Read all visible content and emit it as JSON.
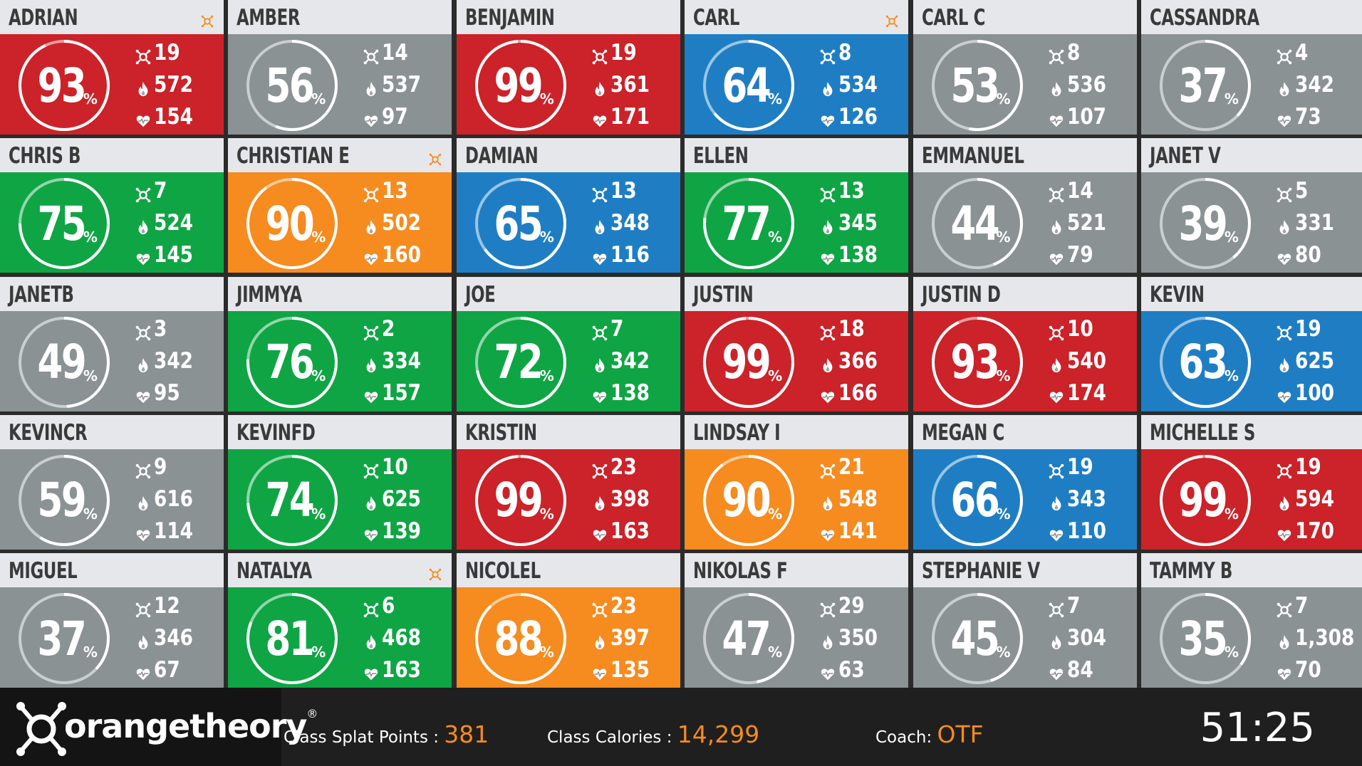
{
  "colors": {
    "red": "#cc2229",
    "gray": "#8b9293",
    "green": "#0fa544",
    "blue": "#1f7ec3",
    "orange": "#f68b1f",
    "header_bg": "#e6e7ea",
    "footer_bg": "#1f1f1f",
    "accent": "#f68b1f"
  },
  "icons": {
    "splat": "splat-icon",
    "calories": "flame-icon",
    "heart_rate": "heart-rate-icon",
    "flag": "splat-flag-icon"
  },
  "participants": [
    {
      "name": "ADRIAN",
      "pct": "93",
      "pct_symbol": "%",
      "splats": "19",
      "calories": "572",
      "heart_rate": "154",
      "color": "red",
      "flag": true
    },
    {
      "name": "AMBER",
      "pct": "56",
      "pct_symbol": "%",
      "splats": "14",
      "calories": "537",
      "heart_rate": "97",
      "color": "gray",
      "flag": false
    },
    {
      "name": "BENJAMIN",
      "pct": "99",
      "pct_symbol": "%",
      "splats": "19",
      "calories": "361",
      "heart_rate": "171",
      "color": "red",
      "flag": false
    },
    {
      "name": "CARL",
      "pct": "64",
      "pct_symbol": "%",
      "splats": "8",
      "calories": "534",
      "heart_rate": "126",
      "color": "blue",
      "flag": true
    },
    {
      "name": "CARL C",
      "pct": "53",
      "pct_symbol": "%",
      "splats": "8",
      "calories": "536",
      "heart_rate": "107",
      "color": "gray",
      "flag": false
    },
    {
      "name": "CASSANDRA",
      "pct": "37",
      "pct_symbol": "%",
      "splats": "4",
      "calories": "342",
      "heart_rate": "73",
      "color": "gray",
      "flag": false
    },
    {
      "name": "CHRIS B",
      "pct": "75",
      "pct_symbol": "%",
      "splats": "7",
      "calories": "524",
      "heart_rate": "145",
      "color": "green",
      "flag": false
    },
    {
      "name": "CHRISTIAN E",
      "pct": "90",
      "pct_symbol": "%",
      "splats": "13",
      "calories": "502",
      "heart_rate": "160",
      "color": "orange",
      "flag": true
    },
    {
      "name": "DAMIAN",
      "pct": "65",
      "pct_symbol": "%",
      "splats": "13",
      "calories": "348",
      "heart_rate": "116",
      "color": "blue",
      "flag": false
    },
    {
      "name": "ELLEN",
      "pct": "77",
      "pct_symbol": "%",
      "splats": "13",
      "calories": "345",
      "heart_rate": "138",
      "color": "green",
      "flag": false
    },
    {
      "name": "EMMANUEL",
      "pct": "44",
      "pct_symbol": "%",
      "splats": "14",
      "calories": "521",
      "heart_rate": "79",
      "color": "gray",
      "flag": false
    },
    {
      "name": "JANET V",
      "pct": "39",
      "pct_symbol": "%",
      "splats": "5",
      "calories": "331",
      "heart_rate": "80",
      "color": "gray",
      "flag": false
    },
    {
      "name": "JANETB",
      "pct": "49",
      "pct_symbol": "%",
      "splats": "3",
      "calories": "342",
      "heart_rate": "95",
      "color": "gray",
      "flag": false
    },
    {
      "name": "JIMMYA",
      "pct": "76",
      "pct_symbol": "%",
      "splats": "2",
      "calories": "334",
      "heart_rate": "157",
      "color": "green",
      "flag": false
    },
    {
      "name": "JOE",
      "pct": "72",
      "pct_symbol": "%",
      "splats": "7",
      "calories": "342",
      "heart_rate": "138",
      "color": "green",
      "flag": false
    },
    {
      "name": "JUSTIN",
      "pct": "99",
      "pct_symbol": "%",
      "splats": "18",
      "calories": "366",
      "heart_rate": "166",
      "color": "red",
      "flag": false
    },
    {
      "name": "JUSTIN D",
      "pct": "93",
      "pct_symbol": "%",
      "splats": "10",
      "calories": "540",
      "heart_rate": "174",
      "color": "red",
      "flag": false
    },
    {
      "name": "KEVIN",
      "pct": "63",
      "pct_symbol": "%",
      "splats": "19",
      "calories": "625",
      "heart_rate": "100",
      "color": "blue",
      "flag": false
    },
    {
      "name": "KEVINCR",
      "pct": "59",
      "pct_symbol": "%",
      "splats": "9",
      "calories": "616",
      "heart_rate": "114",
      "color": "gray",
      "flag": false
    },
    {
      "name": "KEVINFD",
      "pct": "74",
      "pct_symbol": "%",
      "splats": "10",
      "calories": "625",
      "heart_rate": "139",
      "color": "green",
      "flag": false
    },
    {
      "name": "KRISTIN",
      "pct": "99",
      "pct_symbol": "%",
      "splats": "23",
      "calories": "398",
      "heart_rate": "163",
      "color": "red",
      "flag": false
    },
    {
      "name": "LINDSAY I",
      "pct": "90",
      "pct_symbol": "%",
      "splats": "21",
      "calories": "548",
      "heart_rate": "141",
      "color": "orange",
      "flag": false
    },
    {
      "name": "MEGAN C",
      "pct": "66",
      "pct_symbol": "%",
      "splats": "19",
      "calories": "343",
      "heart_rate": "110",
      "color": "blue",
      "flag": false
    },
    {
      "name": "MICHELLE S",
      "pct": "99",
      "pct_symbol": "%",
      "splats": "19",
      "calories": "594",
      "heart_rate": "170",
      "color": "red",
      "flag": false
    },
    {
      "name": "MIGUEL",
      "pct": "37",
      "pct_symbol": "%",
      "splats": "12",
      "calories": "346",
      "heart_rate": "67",
      "color": "gray",
      "flag": false
    },
    {
      "name": "NATALYA",
      "pct": "81",
      "pct_symbol": "%",
      "splats": "6",
      "calories": "468",
      "heart_rate": "163",
      "color": "green",
      "flag": true
    },
    {
      "name": "NICOLEL",
      "pct": "88",
      "pct_symbol": "%",
      "splats": "23",
      "calories": "397",
      "heart_rate": "135",
      "color": "orange",
      "flag": false
    },
    {
      "name": "NIKOLAS F",
      "pct": "47",
      "pct_symbol": "%",
      "splats": "29",
      "calories": "350",
      "heart_rate": "63",
      "color": "gray",
      "flag": false
    },
    {
      "name": "STEPHANIE V",
      "pct": "45",
      "pct_symbol": "%",
      "splats": "7",
      "calories": "304",
      "heart_rate": "84",
      "color": "gray",
      "flag": false
    },
    {
      "name": "TAMMY B",
      "pct": "35",
      "pct_symbol": "%",
      "splats": "7",
      "calories": "1,308",
      "heart_rate": "70",
      "color": "gray",
      "flag": false
    }
  ],
  "footer": {
    "logo_text": "orangetheory",
    "logo_reg": "®",
    "splat_points_label": "Class Splat Points :",
    "splat_points_value": "381",
    "calories_label": "Class Calories :",
    "calories_value": "14,299",
    "coach_label": "Coach:",
    "coach_value": "OTF",
    "timer": "51:25"
  }
}
